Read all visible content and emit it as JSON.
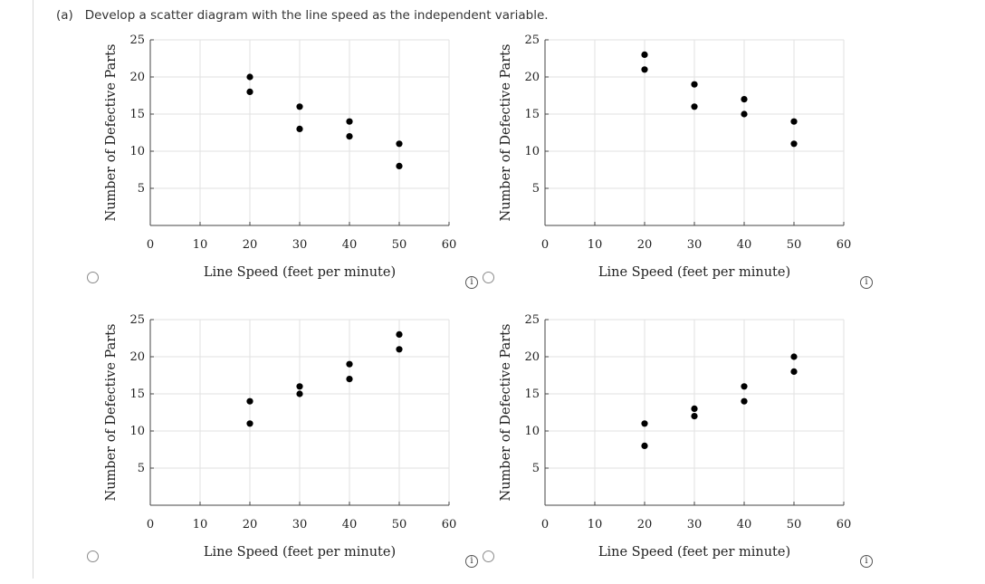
{
  "question": {
    "label": "(a)",
    "text": "Develop a scatter diagram with the line speed as the independent variable."
  },
  "info_symbol": "i",
  "chart_data": [
    {
      "type": "scatter",
      "option": 1,
      "xlabel": "Line Speed (feet per minute)",
      "ylabel": "Number of Defective Parts",
      "xlim": [
        0,
        60
      ],
      "ylim": [
        0,
        25
      ],
      "xticks": [
        0,
        10,
        20,
        30,
        40,
        50,
        60
      ],
      "yticks": [
        5,
        10,
        15,
        20,
        25
      ],
      "grid": true,
      "points": [
        {
          "x": 20,
          "y": 20
        },
        {
          "x": 20,
          "y": 18
        },
        {
          "x": 30,
          "y": 16
        },
        {
          "x": 30,
          "y": 13
        },
        {
          "x": 40,
          "y": 14
        },
        {
          "x": 40,
          "y": 12
        },
        {
          "x": 50,
          "y": 11
        },
        {
          "x": 50,
          "y": 8
        }
      ]
    },
    {
      "type": "scatter",
      "option": 2,
      "xlabel": "Line Speed (feet per minute)",
      "ylabel": "Number of Defective Parts",
      "xlim": [
        0,
        60
      ],
      "ylim": [
        0,
        25
      ],
      "xticks": [
        0,
        10,
        20,
        30,
        40,
        50,
        60
      ],
      "yticks": [
        5,
        10,
        15,
        20,
        25
      ],
      "grid": true,
      "points": [
        {
          "x": 20,
          "y": 23
        },
        {
          "x": 20,
          "y": 21
        },
        {
          "x": 30,
          "y": 19
        },
        {
          "x": 30,
          "y": 16
        },
        {
          "x": 40,
          "y": 17
        },
        {
          "x": 40,
          "y": 15
        },
        {
          "x": 50,
          "y": 14
        },
        {
          "x": 50,
          "y": 11
        }
      ]
    },
    {
      "type": "scatter",
      "option": 3,
      "xlabel": "Line Speed (feet per minute)",
      "ylabel": "Number of Defective Parts",
      "xlim": [
        0,
        60
      ],
      "ylim": [
        0,
        25
      ],
      "xticks": [
        0,
        10,
        20,
        30,
        40,
        50,
        60
      ],
      "yticks": [
        5,
        10,
        15,
        20,
        25
      ],
      "grid": true,
      "points": [
        {
          "x": 20,
          "y": 14
        },
        {
          "x": 20,
          "y": 11
        },
        {
          "x": 30,
          "y": 16
        },
        {
          "x": 30,
          "y": 15
        },
        {
          "x": 40,
          "y": 19
        },
        {
          "x": 40,
          "y": 17
        },
        {
          "x": 50,
          "y": 23
        },
        {
          "x": 50,
          "y": 21
        }
      ]
    },
    {
      "type": "scatter",
      "option": 4,
      "xlabel": "Line Speed (feet per minute)",
      "ylabel": "Number of Defective Parts",
      "xlim": [
        0,
        60
      ],
      "ylim": [
        0,
        25
      ],
      "xticks": [
        0,
        10,
        20,
        30,
        40,
        50,
        60
      ],
      "yticks": [
        5,
        10,
        15,
        20,
        25
      ],
      "grid": true,
      "points": [
        {
          "x": 20,
          "y": 11
        },
        {
          "x": 20,
          "y": 8
        },
        {
          "x": 30,
          "y": 13
        },
        {
          "x": 30,
          "y": 12
        },
        {
          "x": 40,
          "y": 16
        },
        {
          "x": 40,
          "y": 14
        },
        {
          "x": 50,
          "y": 20
        },
        {
          "x": 50,
          "y": 18
        }
      ]
    }
  ]
}
